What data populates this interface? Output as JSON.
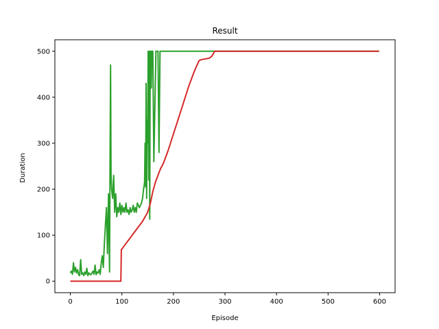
{
  "chart_data": {
    "type": "line",
    "title": "Result",
    "xlabel": "Episode",
    "ylabel": "Duration",
    "xlim": [
      -30,
      630
    ],
    "ylim": [
      -25,
      525
    ],
    "xticks": [
      0,
      100,
      200,
      300,
      400,
      500,
      600
    ],
    "yticks": [
      0,
      100,
      200,
      300,
      400,
      500
    ],
    "grid": false,
    "colors": {
      "episode": "#2ca02c",
      "average": "#d62728"
    },
    "series": [
      {
        "color": "#2ca02c",
        "x": [
          0,
          2,
          4,
          6,
          8,
          10,
          12,
          14,
          16,
          18,
          20,
          22,
          24,
          26,
          28,
          30,
          32,
          34,
          36,
          38,
          40,
          42,
          44,
          46,
          48,
          50,
          52,
          54,
          56,
          58,
          60,
          62,
          64,
          66,
          68,
          70,
          72,
          74,
          76,
          77,
          78,
          79,
          80,
          82,
          84,
          86,
          88,
          90,
          92,
          94,
          96,
          98,
          100,
          102,
          104,
          106,
          108,
          110,
          112,
          114,
          116,
          118,
          120,
          122,
          124,
          126,
          128,
          130,
          132,
          134,
          136,
          138,
          140,
          142,
          144,
          145,
          146,
          147,
          148,
          149,
          150,
          151,
          152,
          153,
          154,
          155,
          156,
          157,
          158,
          160,
          162,
          164,
          166,
          168,
          170,
          172,
          174,
          176,
          177,
          178,
          180,
          182,
          184,
          186,
          190,
          200,
          220,
          260,
          280,
          300,
          400,
          500,
          599
        ],
        "values": [
          18,
          22,
          15,
          40,
          20,
          30,
          18,
          25,
          14,
          12,
          47,
          15,
          18,
          12,
          20,
          15,
          28,
          12,
          18,
          15,
          14,
          18,
          22,
          15,
          35,
          14,
          20,
          18,
          25,
          15,
          40,
          55,
          30,
          80,
          120,
          160,
          60,
          190,
          20,
          250,
          470,
          230,
          200,
          180,
          230,
          150,
          190,
          140,
          160,
          150,
          170,
          145,
          165,
          150,
          160,
          150,
          170,
          150,
          155,
          145,
          160,
          150,
          155,
          165,
          150,
          160,
          150,
          170,
          165,
          160,
          165,
          170,
          180,
          200,
          215,
          300,
          205,
          430,
          180,
          350,
          300,
          500,
          220,
          500,
          135,
          500,
          500,
          420,
          500,
          500,
          260,
          380,
          500,
          500,
          500,
          280,
          500,
          500,
          500,
          500,
          500,
          500,
          500,
          500,
          500,
          500,
          500,
          500,
          500,
          500,
          500,
          500,
          500
        ]
      },
      {
        "color": "#d62728",
        "x": [
          0,
          98,
          99,
          100,
          110,
          120,
          130,
          140,
          150,
          155,
          160,
          165,
          170,
          175,
          180,
          185,
          190,
          200,
          210,
          220,
          230,
          240,
          245,
          250,
          255,
          260,
          265,
          270,
          275,
          280,
          290,
          300,
          400,
          500,
          599
        ],
        "values": [
          0,
          0,
          69,
          70,
          85,
          100,
          115,
          130,
          150,
          168,
          195,
          215,
          230,
          245,
          255,
          270,
          285,
          320,
          355,
          390,
          425,
          455,
          468,
          480,
          482,
          483,
          484,
          485,
          490,
          500,
          500,
          500,
          500,
          500,
          500
        ]
      }
    ]
  }
}
